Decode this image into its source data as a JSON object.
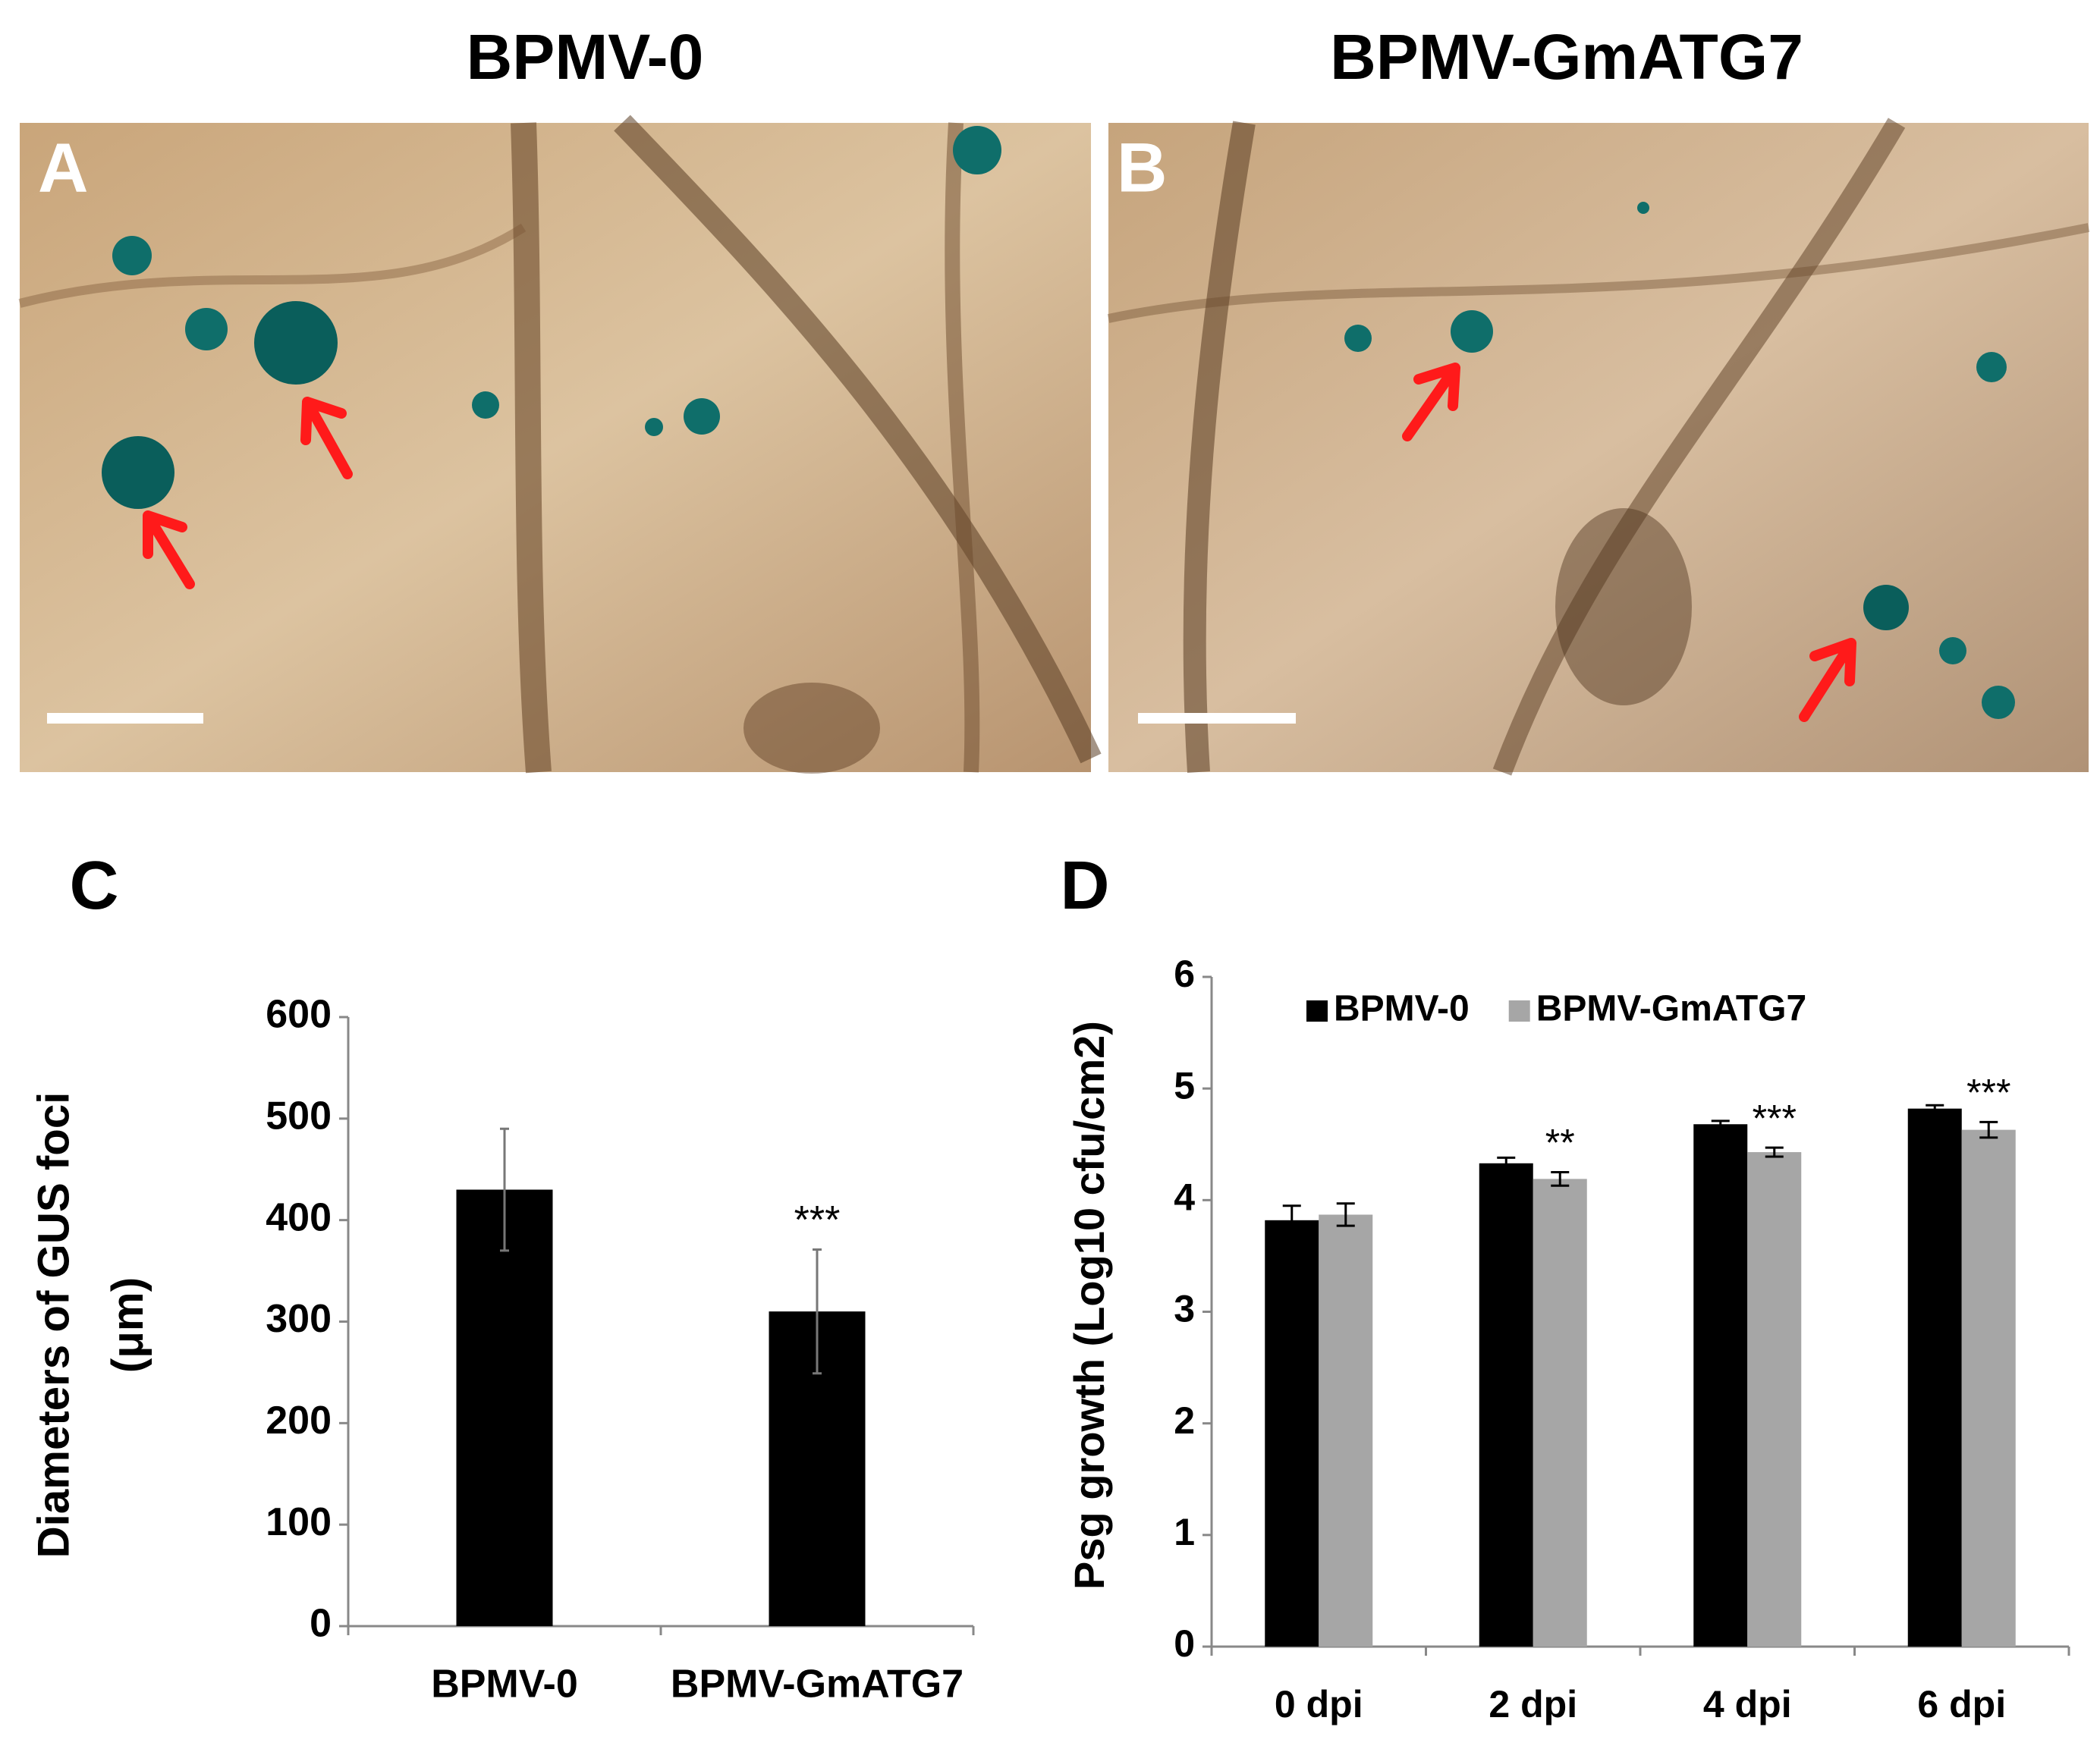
{
  "figure": {
    "headings": [
      "BPMV-0",
      "BPMV-GmATG7"
    ],
    "panel_labels": [
      "A",
      "B",
      "C",
      "D"
    ]
  },
  "chart_data": [
    {
      "type": "bar",
      "categories": [
        "BPMV-0",
        "BPMV-GmATG7"
      ],
      "values": [
        430,
        310
      ],
      "errors": [
        60,
        61
      ],
      "color": "#000000",
      "annotations": [
        null,
        "***"
      ],
      "ylabel": [
        "Diameters of GUS foci",
        "(μm)"
      ],
      "ylim": [
        0,
        600
      ],
      "yticks": [
        0,
        100,
        200,
        300,
        400,
        500,
        600
      ]
    },
    {
      "type": "bar",
      "categories": [
        "0 dpi",
        "2 dpi",
        "4 dpi",
        "6 dpi"
      ],
      "series": [
        {
          "name": "BPMV-0",
          "color": "#000000",
          "values": [
            3.82,
            4.33,
            4.68,
            4.82
          ],
          "errors": [
            0.13,
            0.05,
            0.03,
            0.03
          ]
        },
        {
          "name": "BPMV-GmATG7",
          "color": "#a6a6a6",
          "values": [
            3.87,
            4.19,
            4.43,
            4.63
          ],
          "errors": [
            0.1,
            0.06,
            0.04,
            0.07
          ],
          "annotations": [
            null,
            "**",
            "***",
            "***"
          ]
        }
      ],
      "ylabel": [
        "Psg growth (Log10 cfu/cm2)"
      ],
      "legend": "top-left",
      "ylim": [
        0,
        6
      ],
      "yticks": [
        0,
        1,
        2,
        3,
        4,
        5,
        6
      ]
    }
  ]
}
